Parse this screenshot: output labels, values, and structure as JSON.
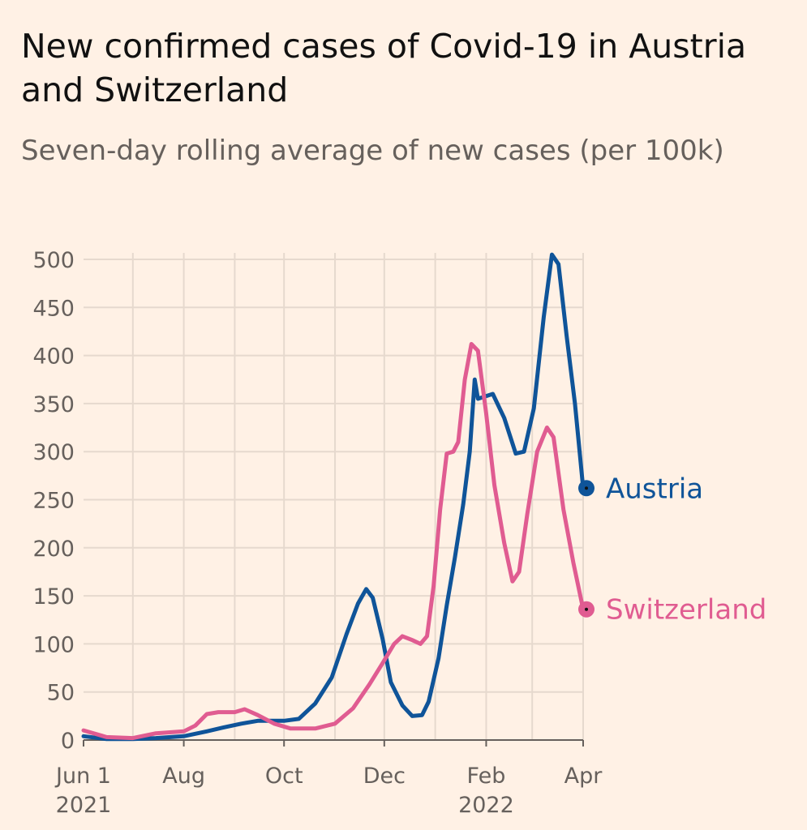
{
  "header": {
    "title": "New confirmed cases of Covid-19 in Austria and Switzerland",
    "subtitle": "Seven-day rolling average of new cases (per 100k)"
  },
  "colors": {
    "background": "#fff1e5",
    "grid": "#e6d9ce",
    "axis": "#66605c",
    "austria": "#0f5499",
    "switzerland": "#e05c91"
  },
  "chart_data": {
    "type": "line",
    "x_axis_type": "date",
    "xlim": [
      "2021-06-01",
      "2022-04-01"
    ],
    "ylim": [
      0,
      500
    ],
    "y_ticks": [
      0,
      50,
      100,
      150,
      200,
      250,
      300,
      350,
      400,
      450,
      500
    ],
    "x_ticks": [
      {
        "date": "2021-06-01",
        "label": "Jun 1",
        "sublabel": "2021"
      },
      {
        "date": "2021-08-01",
        "label": "Aug",
        "sublabel": ""
      },
      {
        "date": "2021-10-01",
        "label": "Oct",
        "sublabel": ""
      },
      {
        "date": "2021-12-01",
        "label": "Dec",
        "sublabel": ""
      },
      {
        "date": "2022-02-01",
        "label": "Feb",
        "sublabel": "2022"
      },
      {
        "date": "2022-04-01",
        "label": "Apr",
        "sublabel": ""
      }
    ],
    "grid": true,
    "grid_vertical_dates": [
      "2021-07-01",
      "2021-08-01",
      "2021-09-01",
      "2021-10-01",
      "2021-11-01",
      "2021-12-01",
      "2022-01-01",
      "2022-02-01",
      "2022-03-01",
      "2022-04-01"
    ],
    "legend": "direct-labels-at-line-ends",
    "series": [
      {
        "name": "Austria",
        "color": "#0f5499",
        "end_label": "Austria",
        "points": [
          [
            "2021-06-01",
            4
          ],
          [
            "2021-06-15",
            1
          ],
          [
            "2021-07-01",
            1
          ],
          [
            "2021-07-15",
            2
          ],
          [
            "2021-08-01",
            4
          ],
          [
            "2021-08-15",
            9
          ],
          [
            "2021-08-25",
            13
          ],
          [
            "2021-09-05",
            17
          ],
          [
            "2021-09-15",
            20
          ],
          [
            "2021-10-01",
            20
          ],
          [
            "2021-10-10",
            22
          ],
          [
            "2021-10-20",
            38
          ],
          [
            "2021-10-30",
            65
          ],
          [
            "2021-11-08",
            110
          ],
          [
            "2021-11-15",
            142
          ],
          [
            "2021-11-20",
            157
          ],
          [
            "2021-11-24",
            148
          ],
          [
            "2021-11-30",
            105
          ],
          [
            "2021-12-05",
            60
          ],
          [
            "2021-12-12",
            36
          ],
          [
            "2021-12-18",
            25
          ],
          [
            "2021-12-24",
            26
          ],
          [
            "2021-12-28",
            40
          ],
          [
            "2022-01-03",
            85
          ],
          [
            "2022-01-08",
            140
          ],
          [
            "2022-01-13",
            190
          ],
          [
            "2022-01-18",
            245
          ],
          [
            "2022-01-22",
            300
          ],
          [
            "2022-01-25",
            375
          ],
          [
            "2022-01-27",
            355
          ],
          [
            "2022-02-05",
            360
          ],
          [
            "2022-02-12",
            335
          ],
          [
            "2022-02-19",
            298
          ],
          [
            "2022-02-24",
            300
          ],
          [
            "2022-03-02",
            345
          ],
          [
            "2022-03-08",
            440
          ],
          [
            "2022-03-13",
            505
          ],
          [
            "2022-03-17",
            495
          ],
          [
            "2022-03-22",
            420
          ],
          [
            "2022-03-27",
            350
          ],
          [
            "2022-04-01",
            262
          ]
        ]
      },
      {
        "name": "Switzerland",
        "color": "#e05c91",
        "end_label": "Switzerland",
        "points": [
          [
            "2021-06-01",
            10
          ],
          [
            "2021-06-15",
            3
          ],
          [
            "2021-07-01",
            2
          ],
          [
            "2021-07-15",
            7
          ],
          [
            "2021-08-01",
            9
          ],
          [
            "2021-08-08",
            15
          ],
          [
            "2021-08-15",
            27
          ],
          [
            "2021-08-22",
            29
          ],
          [
            "2021-09-01",
            29
          ],
          [
            "2021-09-07",
            32
          ],
          [
            "2021-09-15",
            26
          ],
          [
            "2021-09-25",
            17
          ],
          [
            "2021-10-05",
            12
          ],
          [
            "2021-10-20",
            12
          ],
          [
            "2021-11-01",
            17
          ],
          [
            "2021-11-12",
            33
          ],
          [
            "2021-11-22",
            58
          ],
          [
            "2021-11-30",
            80
          ],
          [
            "2021-12-07",
            100
          ],
          [
            "2021-12-12",
            108
          ],
          [
            "2021-12-18",
            104
          ],
          [
            "2021-12-23",
            100
          ],
          [
            "2021-12-27",
            108
          ],
          [
            "2021-12-31",
            160
          ],
          [
            "2022-01-04",
            240
          ],
          [
            "2022-01-08",
            298
          ],
          [
            "2022-01-12",
            300
          ],
          [
            "2022-01-15",
            310
          ],
          [
            "2022-01-19",
            375
          ],
          [
            "2022-01-23",
            412
          ],
          [
            "2022-01-27",
            405
          ],
          [
            "2022-02-01",
            340
          ],
          [
            "2022-02-06",
            265
          ],
          [
            "2022-02-12",
            205
          ],
          [
            "2022-02-17",
            165
          ],
          [
            "2022-02-21",
            175
          ],
          [
            "2022-02-26",
            235
          ],
          [
            "2022-03-04",
            300
          ],
          [
            "2022-03-10",
            325
          ],
          [
            "2022-03-14",
            315
          ],
          [
            "2022-03-20",
            240
          ],
          [
            "2022-03-26",
            185
          ],
          [
            "2022-04-01",
            136
          ]
        ]
      }
    ]
  }
}
